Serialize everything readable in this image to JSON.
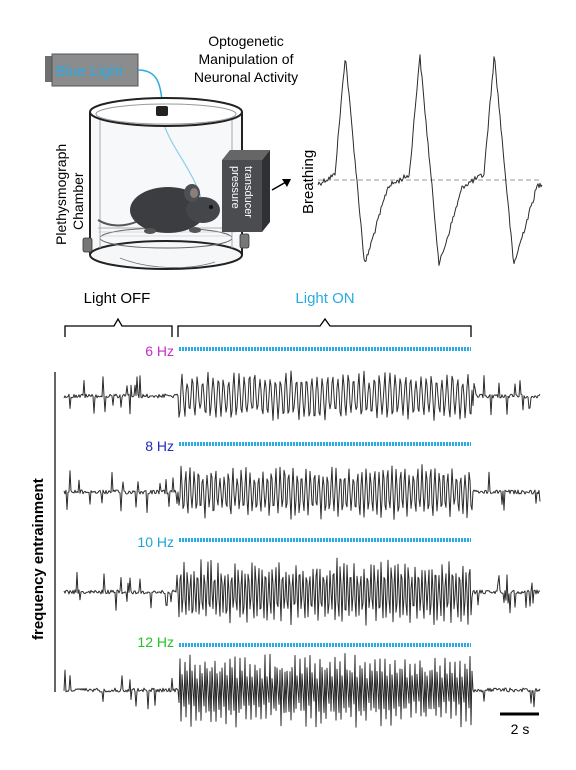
{
  "title_lines": [
    "Optogenetic",
    "Manipulation of",
    "Neuronal Activity"
  ],
  "light_source_label": "Blue Light",
  "chamber_label_lines": [
    "Plethysmograph",
    "Chamber"
  ],
  "transducer_label_lines": [
    "pressure",
    "transducer"
  ],
  "breathing_label": "Breathing",
  "light_off_label": "Light OFF",
  "light_on_label": "Light ON",
  "y_group_label": "frequency entrainment",
  "scale_bar_label": "2 s",
  "colors": {
    "light_blue": "#29abe2",
    "trace": "#2b2b2b",
    "hz6": "#c72cc7",
    "hz8": "#1d2bb8",
    "hz10": "#1fa3d6",
    "hz12": "#22c422"
  },
  "conditions": [
    {
      "label": "6 Hz",
      "color": "#c72cc7",
      "stim_hz": 6
    },
    {
      "label": "8 Hz",
      "color": "#1d2bb8",
      "stim_hz": 8
    },
    {
      "label": "10 Hz",
      "color": "#1fa3d6",
      "stim_hz": 10
    },
    {
      "label": "12 Hz",
      "color": "#22c422",
      "stim_hz": 12
    }
  ]
}
